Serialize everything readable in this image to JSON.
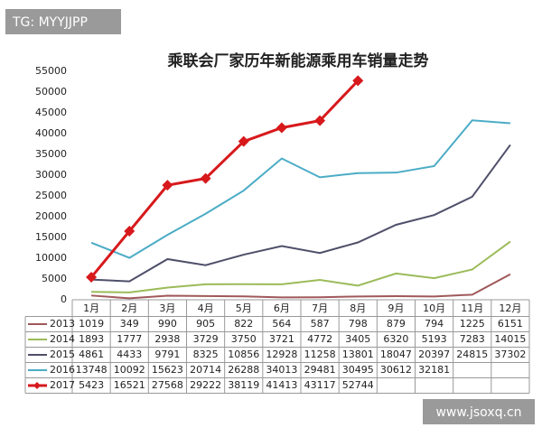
{
  "chart_data": {
    "type": "line",
    "title": "乘联会厂家历年新能源乘用车销量走势",
    "categories": [
      "1月",
      "2月",
      "3月",
      "4月",
      "5月",
      "6月",
      "7月",
      "8月",
      "9月",
      "10月",
      "11月",
      "12月"
    ],
    "ylim": [
      0,
      55000
    ],
    "yticks": [
      0,
      5000,
      10000,
      15000,
      20000,
      25000,
      30000,
      35000,
      40000,
      45000,
      50000,
      55000
    ],
    "grid": false,
    "series": [
      {
        "name": "2013",
        "color": "#a0585a",
        "values": [
          1019,
          349,
          990,
          905,
          822,
          564,
          587,
          798,
          879,
          794,
          1225,
          6151
        ]
      },
      {
        "name": "2014",
        "color": "#9bbb59",
        "values": [
          1893,
          1777,
          2938,
          3729,
          3750,
          3721,
          4772,
          3405,
          6320,
          5193,
          7283,
          14015
        ]
      },
      {
        "name": "2015",
        "color": "#4f4f6a",
        "values": [
          4861,
          4433,
          9791,
          8325,
          10856,
          12928,
          11258,
          13801,
          18047,
          20397,
          24815,
          37302
        ]
      },
      {
        "name": "2016",
        "color": "#4bacc6",
        "values": [
          13748,
          10092,
          15623,
          20714,
          26288,
          34013,
          29481,
          30495,
          30612,
          32181,
          43200,
          42500
        ],
        "value_labels": [
          "13748",
          "10092",
          "15623",
          "20714",
          "26288",
          "34013",
          "29481",
          "30495",
          "30612",
          "32181",
          null,
          null
        ]
      },
      {
        "name": "2017",
        "color": "#d7191c",
        "marker": "diamond",
        "values": [
          5423,
          16521,
          27568,
          29222,
          38119,
          41413,
          43117,
          52744,
          null,
          null,
          null,
          null
        ]
      }
    ]
  },
  "watermarks": [
    "TG: MYYJJPP",
    "www.jsoxq.cn"
  ]
}
